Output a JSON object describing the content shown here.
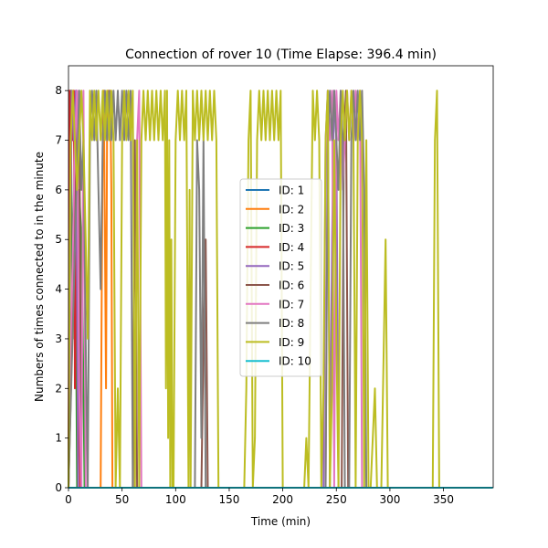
{
  "chart_data": {
    "type": "line",
    "title": "Connection of rover 10 (Time Elapse: 396.4 min)",
    "xlabel": "Time (min)",
    "ylabel": "Numbers of times connected to in the minute",
    "xlim": [
      0,
      396.4
    ],
    "ylim": [
      0,
      8.5
    ],
    "xticks": [
      0,
      50,
      100,
      150,
      200,
      250,
      300,
      350
    ],
    "yticks": [
      0,
      1,
      2,
      3,
      4,
      5,
      6,
      7,
      8
    ],
    "grid": false,
    "legend_position": "center",
    "series": [
      {
        "name": "ID: 1",
        "color": "#1f77b4",
        "points": [
          [
            0,
            0
          ],
          [
            396,
            0
          ]
        ]
      },
      {
        "name": "ID: 2",
        "color": "#ff7f0e",
        "points": [
          [
            0,
            0
          ],
          [
            30,
            0
          ],
          [
            31,
            4
          ],
          [
            32,
            7
          ],
          [
            33,
            8
          ],
          [
            34,
            5
          ],
          [
            35,
            2
          ],
          [
            36,
            7
          ],
          [
            37,
            8
          ],
          [
            38,
            7
          ],
          [
            39,
            8
          ],
          [
            40,
            6
          ],
          [
            41,
            0
          ],
          [
            396,
            0
          ]
        ]
      },
      {
        "name": "ID: 3",
        "color": "#2ca02c",
        "points": [
          [
            0,
            0
          ],
          [
            2,
            8
          ],
          [
            4,
            3
          ],
          [
            6,
            7
          ],
          [
            8,
            0
          ],
          [
            10,
            6
          ],
          [
            12,
            5
          ],
          [
            14,
            2
          ],
          [
            15,
            0
          ],
          [
            396,
            0
          ]
        ]
      },
      {
        "name": "ID: 4",
        "color": "#d62728",
        "points": [
          [
            0,
            0
          ],
          [
            1,
            8
          ],
          [
            2,
            5
          ],
          [
            3,
            8
          ],
          [
            4,
            7
          ],
          [
            5,
            8
          ],
          [
            6,
            2
          ],
          [
            7,
            8
          ],
          [
            8,
            3
          ],
          [
            9,
            0
          ],
          [
            10,
            5
          ],
          [
            11,
            0
          ],
          [
            396,
            0
          ]
        ]
      },
      {
        "name": "ID: 5",
        "color": "#9467bd",
        "points": [
          [
            0,
            0
          ],
          [
            3,
            8
          ],
          [
            5,
            7
          ],
          [
            7,
            8
          ],
          [
            9,
            0
          ],
          [
            238,
            0
          ],
          [
            240,
            7
          ],
          [
            242,
            8
          ],
          [
            244,
            0
          ],
          [
            246,
            5
          ],
          [
            248,
            8
          ],
          [
            250,
            7
          ],
          [
            252,
            0
          ],
          [
            396,
            0
          ]
        ]
      },
      {
        "name": "ID: 6",
        "color": "#8c564b",
        "points": [
          [
            0,
            0
          ],
          [
            8,
            7
          ],
          [
            10,
            8
          ],
          [
            12,
            0
          ],
          [
            60,
            0
          ],
          [
            62,
            7
          ],
          [
            64,
            0
          ],
          [
            124,
            0
          ],
          [
            126,
            3
          ],
          [
            128,
            5
          ],
          [
            130,
            0
          ],
          [
            255,
            0
          ],
          [
            257,
            7
          ],
          [
            259,
            8
          ],
          [
            261,
            0
          ],
          [
            396,
            0
          ]
        ]
      },
      {
        "name": "ID: 7",
        "color": "#e377c2",
        "points": [
          [
            0,
            0
          ],
          [
            6,
            7
          ],
          [
            8,
            8
          ],
          [
            10,
            2
          ],
          [
            12,
            0
          ],
          [
            14,
            8
          ],
          [
            16,
            0
          ],
          [
            62,
            0
          ],
          [
            64,
            7
          ],
          [
            66,
            8
          ],
          [
            68,
            0
          ],
          [
            240,
            0
          ],
          [
            242,
            8
          ],
          [
            244,
            7
          ],
          [
            246,
            8
          ],
          [
            248,
            0
          ],
          [
            250,
            8
          ],
          [
            252,
            7
          ],
          [
            254,
            8
          ],
          [
            256,
            6
          ],
          [
            258,
            7
          ],
          [
            260,
            8
          ],
          [
            262,
            7
          ],
          [
            264,
            8
          ],
          [
            266,
            7
          ],
          [
            268,
            8
          ],
          [
            270,
            7
          ],
          [
            272,
            8
          ],
          [
            274,
            0
          ],
          [
            396,
            0
          ]
        ]
      },
      {
        "name": "ID: 8",
        "color": "#7f7f7f",
        "points": [
          [
            0,
            0
          ],
          [
            10,
            8
          ],
          [
            12,
            6
          ],
          [
            14,
            7
          ],
          [
            16,
            3
          ],
          [
            18,
            0
          ],
          [
            20,
            7
          ],
          [
            22,
            8
          ],
          [
            24,
            7
          ],
          [
            26,
            8
          ],
          [
            28,
            6
          ],
          [
            30,
            4
          ],
          [
            32,
            7
          ],
          [
            34,
            8
          ],
          [
            36,
            7
          ],
          [
            38,
            8
          ],
          [
            40,
            7
          ],
          [
            42,
            8
          ],
          [
            44,
            7
          ],
          [
            46,
            8
          ],
          [
            48,
            7
          ],
          [
            50,
            8
          ],
          [
            52,
            7
          ],
          [
            54,
            8
          ],
          [
            56,
            7
          ],
          [
            58,
            8
          ],
          [
            60,
            0
          ],
          [
            118,
            0
          ],
          [
            120,
            7
          ],
          [
            122,
            6
          ],
          [
            124,
            1
          ],
          [
            126,
            7
          ],
          [
            128,
            0
          ],
          [
            240,
            0
          ],
          [
            242,
            7
          ],
          [
            244,
            8
          ],
          [
            246,
            7
          ],
          [
            248,
            8
          ],
          [
            250,
            7
          ],
          [
            252,
            6
          ],
          [
            254,
            8
          ],
          [
            256,
            7
          ],
          [
            258,
            0
          ],
          [
            262,
            0
          ],
          [
            264,
            7
          ],
          [
            266,
            8
          ],
          [
            268,
            7
          ],
          [
            270,
            8
          ],
          [
            272,
            7
          ],
          [
            274,
            8
          ],
          [
            276,
            6
          ],
          [
            278,
            0
          ],
          [
            396,
            0
          ]
        ]
      },
      {
        "name": "ID: 9",
        "color": "#bcbd22",
        "points": [
          [
            0,
            0
          ],
          [
            2,
            7
          ],
          [
            4,
            8
          ],
          [
            6,
            7
          ],
          [
            8,
            6
          ],
          [
            10,
            7
          ],
          [
            12,
            8
          ],
          [
            14,
            7
          ],
          [
            16,
            5
          ],
          [
            18,
            3
          ],
          [
            20,
            8
          ],
          [
            22,
            7
          ],
          [
            24,
            8
          ],
          [
            26,
            7
          ],
          [
            28,
            8
          ],
          [
            30,
            7
          ],
          [
            32,
            8
          ],
          [
            34,
            7
          ],
          [
            36,
            8
          ],
          [
            38,
            7
          ],
          [
            40,
            8
          ],
          [
            42,
            7
          ],
          [
            44,
            0
          ],
          [
            46,
            2
          ],
          [
            48,
            0
          ],
          [
            50,
            7
          ],
          [
            52,
            8
          ],
          [
            54,
            7
          ],
          [
            56,
            8
          ],
          [
            58,
            7
          ],
          [
            60,
            8
          ],
          [
            62,
            0
          ],
          [
            64,
            7
          ],
          [
            66,
            0
          ],
          [
            68,
            7
          ],
          [
            70,
            8
          ],
          [
            72,
            7
          ],
          [
            74,
            8
          ],
          [
            76,
            7
          ],
          [
            78,
            8
          ],
          [
            80,
            7
          ],
          [
            82,
            8
          ],
          [
            84,
            7
          ],
          [
            86,
            8
          ],
          [
            88,
            7
          ],
          [
            90,
            8
          ],
          [
            91,
            2
          ],
          [
            92,
            8
          ],
          [
            93,
            1
          ],
          [
            94,
            7
          ],
          [
            95,
            0
          ],
          [
            96,
            5
          ],
          [
            97,
            0
          ],
          [
            98,
            0
          ],
          [
            100,
            7
          ],
          [
            102,
            8
          ],
          [
            104,
            7
          ],
          [
            106,
            8
          ],
          [
            108,
            7
          ],
          [
            110,
            8
          ],
          [
            112,
            0
          ],
          [
            113,
            6
          ],
          [
            114,
            0
          ],
          [
            116,
            8
          ],
          [
            118,
            7
          ],
          [
            120,
            8
          ],
          [
            122,
            7
          ],
          [
            124,
            8
          ],
          [
            126,
            7
          ],
          [
            128,
            8
          ],
          [
            130,
            7
          ],
          [
            132,
            8
          ],
          [
            134,
            7
          ],
          [
            136,
            8
          ],
          [
            138,
            7
          ],
          [
            140,
            0
          ],
          [
            142,
            0
          ],
          [
            144,
            0
          ],
          [
            146,
            0
          ],
          [
            148,
            0
          ],
          [
            150,
            0
          ],
          [
            152,
            0
          ],
          [
            154,
            0
          ],
          [
            156,
            0
          ],
          [
            158,
            0
          ],
          [
            160,
            0
          ],
          [
            162,
            0
          ],
          [
            164,
            0
          ],
          [
            166,
            2
          ],
          [
            168,
            7
          ],
          [
            170,
            8
          ],
          [
            172,
            0
          ],
          [
            174,
            1
          ],
          [
            176,
            7
          ],
          [
            178,
            8
          ],
          [
            180,
            7
          ],
          [
            182,
            8
          ],
          [
            184,
            7
          ],
          [
            186,
            8
          ],
          [
            188,
            7
          ],
          [
            190,
            8
          ],
          [
            192,
            7
          ],
          [
            194,
            8
          ],
          [
            196,
            7
          ],
          [
            198,
            8
          ],
          [
            200,
            0
          ],
          [
            220,
            0
          ],
          [
            222,
            1
          ],
          [
            224,
            0
          ],
          [
            226,
            4
          ],
          [
            228,
            8
          ],
          [
            230,
            7
          ],
          [
            232,
            8
          ],
          [
            234,
            7
          ],
          [
            236,
            0
          ],
          [
            238,
            2
          ],
          [
            240,
            7
          ],
          [
            242,
            8
          ],
          [
            244,
            0
          ],
          [
            246,
            2
          ],
          [
            248,
            7
          ],
          [
            250,
            3
          ],
          [
            252,
            0
          ],
          [
            254,
            7
          ],
          [
            256,
            8
          ],
          [
            258,
            7
          ],
          [
            260,
            8
          ],
          [
            262,
            7
          ],
          [
            264,
            8
          ],
          [
            266,
            7
          ],
          [
            268,
            0
          ],
          [
            270,
            7
          ],
          [
            272,
            8
          ],
          [
            274,
            7
          ],
          [
            276,
            0
          ],
          [
            278,
            7
          ],
          [
            280,
            0
          ],
          [
            282,
            0
          ],
          [
            286,
            2
          ],
          [
            288,
            0
          ],
          [
            290,
            0
          ],
          [
            292,
            0
          ],
          [
            296,
            5
          ],
          [
            298,
            0
          ],
          [
            300,
            0
          ],
          [
            340,
            0
          ],
          [
            342,
            7
          ],
          [
            344,
            8
          ],
          [
            346,
            0
          ],
          [
            396,
            0
          ]
        ]
      },
      {
        "name": "ID: 10",
        "color": "#17becf",
        "points": [
          [
            0,
            0
          ],
          [
            396,
            0
          ]
        ]
      }
    ]
  }
}
